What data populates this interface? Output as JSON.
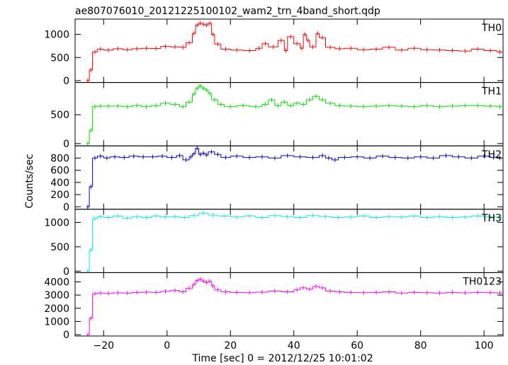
{
  "chart_data": {
    "type": "line",
    "title": "ae807076010_20121225100102_wam2_trn_4band_short.qdp",
    "xlabel": "Time [sec] 0 = 2012/12/25 10:01:02",
    "ylabel": "Counts/sec",
    "xlim": [
      -29,
      106
    ],
    "xticks": [
      -20,
      0,
      20,
      40,
      60,
      80,
      100
    ],
    "panels": [
      {
        "label": "TH0",
        "color": "#ff0000",
        "ylim": [
          -40,
          1330
        ],
        "yticks": [
          0,
          500,
          1000
        ],
        "points": [
          [
            -25.5,
            0
          ],
          [
            -24.5,
            230
          ],
          [
            -23.5,
            620
          ],
          [
            -22,
            680
          ],
          [
            -20,
            660
          ],
          [
            -17,
            690
          ],
          [
            -14,
            670
          ],
          [
            -11,
            690
          ],
          [
            -8,
            700
          ],
          [
            -5,
            695
          ],
          [
            -2,
            740
          ],
          [
            1,
            730
          ],
          [
            4,
            720
          ],
          [
            6,
            820
          ],
          [
            8,
            1020
          ],
          [
            9,
            1200
          ],
          [
            10,
            1240
          ],
          [
            11,
            1220
          ],
          [
            12,
            1200
          ],
          [
            13,
            1240
          ],
          [
            14,
            1000
          ],
          [
            15,
            790
          ],
          [
            17,
            680
          ],
          [
            20,
            660
          ],
          [
            24,
            650
          ],
          [
            28,
            700
          ],
          [
            30,
            800
          ],
          [
            32,
            730
          ],
          [
            35,
            870
          ],
          [
            37,
            650
          ],
          [
            38,
            950
          ],
          [
            40,
            800
          ],
          [
            42,
            700
          ],
          [
            43,
            1000
          ],
          [
            44,
            870
          ],
          [
            45,
            730
          ],
          [
            47,
            1020
          ],
          [
            48,
            930
          ],
          [
            50,
            720
          ],
          [
            53,
            690
          ],
          [
            56,
            700
          ],
          [
            60,
            670
          ],
          [
            64,
            680
          ],
          [
            68,
            720
          ],
          [
            72,
            660
          ],
          [
            76,
            700
          ],
          [
            80,
            670
          ],
          [
            84,
            660
          ],
          [
            88,
            650
          ],
          [
            92,
            640
          ],
          [
            96,
            680
          ],
          [
            100,
            650
          ],
          [
            104,
            620
          ]
        ]
      },
      {
        "label": "TH1",
        "color": "#00dd00",
        "ylim": [
          -40,
          1060
        ],
        "yticks": [
          0,
          500
        ],
        "points": [
          [
            -25.5,
            0
          ],
          [
            -24.5,
            230
          ],
          [
            -23.5,
            640
          ],
          [
            -22,
            650
          ],
          [
            -20,
            650
          ],
          [
            -17,
            650
          ],
          [
            -14,
            640
          ],
          [
            -11,
            660
          ],
          [
            -8,
            640
          ],
          [
            -5,
            660
          ],
          [
            -2,
            700
          ],
          [
            1,
            680
          ],
          [
            4,
            640
          ],
          [
            6,
            720
          ],
          [
            8,
            860
          ],
          [
            9,
            960
          ],
          [
            10,
            1000
          ],
          [
            11,
            960
          ],
          [
            12,
            930
          ],
          [
            13,
            870
          ],
          [
            14,
            760
          ],
          [
            16,
            680
          ],
          [
            18,
            640
          ],
          [
            22,
            660
          ],
          [
            26,
            640
          ],
          [
            30,
            680
          ],
          [
            32,
            760
          ],
          [
            34,
            660
          ],
          [
            36,
            720
          ],
          [
            38,
            660
          ],
          [
            40,
            700
          ],
          [
            42,
            680
          ],
          [
            44,
            760
          ],
          [
            46,
            820
          ],
          [
            48,
            760
          ],
          [
            50,
            700
          ],
          [
            53,
            660
          ],
          [
            56,
            650
          ],
          [
            60,
            640
          ],
          [
            64,
            650
          ],
          [
            68,
            660
          ],
          [
            72,
            650
          ],
          [
            76,
            640
          ],
          [
            80,
            660
          ],
          [
            84,
            640
          ],
          [
            88,
            650
          ],
          [
            92,
            660
          ],
          [
            96,
            660
          ],
          [
            100,
            650
          ],
          [
            104,
            640
          ]
        ]
      },
      {
        "label": "TH2",
        "color": "#0000cc",
        "ylim": [
          -40,
          1000
        ],
        "yticks": [
          0,
          200,
          400,
          600,
          800
        ],
        "points": [
          [
            -25.5,
            0
          ],
          [
            -24.5,
            330
          ],
          [
            -23.5,
            800
          ],
          [
            -22,
            830
          ],
          [
            -20,
            800
          ],
          [
            -18,
            820
          ],
          [
            -15,
            810
          ],
          [
            -12,
            830
          ],
          [
            -9,
            820
          ],
          [
            -6,
            820
          ],
          [
            -3,
            830
          ],
          [
            0,
            810
          ],
          [
            3,
            840
          ],
          [
            5,
            770
          ],
          [
            7,
            820
          ],
          [
            8,
            870
          ],
          [
            9,
            960
          ],
          [
            10,
            860
          ],
          [
            11,
            880
          ],
          [
            12,
            850
          ],
          [
            13,
            900
          ],
          [
            15,
            860
          ],
          [
            17,
            810
          ],
          [
            20,
            830
          ],
          [
            24,
            810
          ],
          [
            28,
            820
          ],
          [
            32,
            800
          ],
          [
            36,
            840
          ],
          [
            40,
            820
          ],
          [
            44,
            810
          ],
          [
            48,
            840
          ],
          [
            50,
            800
          ],
          [
            52,
            770
          ],
          [
            54,
            810
          ],
          [
            58,
            820
          ],
          [
            62,
            800
          ],
          [
            66,
            830
          ],
          [
            70,
            810
          ],
          [
            74,
            800
          ],
          [
            78,
            820
          ],
          [
            82,
            800
          ],
          [
            86,
            840
          ],
          [
            90,
            820
          ],
          [
            94,
            800
          ],
          [
            98,
            830
          ],
          [
            102,
            810
          ],
          [
            104,
            800
          ]
        ]
      },
      {
        "label": "TH3",
        "color": "#00eeee",
        "ylim": [
          -30,
          1270
        ],
        "yticks": [
          0,
          500,
          1000
        ],
        "points": [
          [
            -25.5,
            0
          ],
          [
            -24.5,
            440
          ],
          [
            -23.5,
            1080
          ],
          [
            -22,
            1120
          ],
          [
            -20,
            1100
          ],
          [
            -17,
            1130
          ],
          [
            -14,
            1090
          ],
          [
            -11,
            1120
          ],
          [
            -8,
            1100
          ],
          [
            -5,
            1130
          ],
          [
            -2,
            1110
          ],
          [
            1,
            1120
          ],
          [
            4,
            1100
          ],
          [
            7,
            1140
          ],
          [
            10,
            1190
          ],
          [
            13,
            1150
          ],
          [
            16,
            1130
          ],
          [
            20,
            1110
          ],
          [
            24,
            1130
          ],
          [
            28,
            1100
          ],
          [
            32,
            1140
          ],
          [
            36,
            1120
          ],
          [
            40,
            1100
          ],
          [
            44,
            1140
          ],
          [
            48,
            1120
          ],
          [
            52,
            1100
          ],
          [
            56,
            1110
          ],
          [
            60,
            1130
          ],
          [
            64,
            1100
          ],
          [
            68,
            1120
          ],
          [
            72,
            1110
          ],
          [
            76,
            1130
          ],
          [
            80,
            1100
          ],
          [
            84,
            1120
          ],
          [
            88,
            1100
          ],
          [
            92,
            1110
          ],
          [
            96,
            1130
          ],
          [
            100,
            1110
          ],
          [
            104,
            1100
          ]
        ]
      },
      {
        "label": "TH0123",
        "color": "#ff00ff",
        "ylim": [
          -100,
          4700
        ],
        "yticks": [
          0,
          1000,
          2000,
          3000,
          4000
        ],
        "points": [
          [
            -25.5,
            0
          ],
          [
            -24.5,
            1250
          ],
          [
            -23.5,
            3100
          ],
          [
            -22,
            3150
          ],
          [
            -20,
            3130
          ],
          [
            -17,
            3170
          ],
          [
            -14,
            3150
          ],
          [
            -11,
            3200
          ],
          [
            -8,
            3220
          ],
          [
            -5,
            3200
          ],
          [
            -2,
            3280
          ],
          [
            1,
            3350
          ],
          [
            4,
            3250
          ],
          [
            6,
            3500
          ],
          [
            8,
            3800
          ],
          [
            9,
            4100
          ],
          [
            10,
            4200
          ],
          [
            11,
            4050
          ],
          [
            12,
            3950
          ],
          [
            13,
            4050
          ],
          [
            14,
            3700
          ],
          [
            15,
            3400
          ],
          [
            17,
            3250
          ],
          [
            20,
            3200
          ],
          [
            24,
            3180
          ],
          [
            28,
            3220
          ],
          [
            32,
            3300
          ],
          [
            36,
            3250
          ],
          [
            40,
            3400
          ],
          [
            42,
            3550
          ],
          [
            44,
            3450
          ],
          [
            46,
            3650
          ],
          [
            48,
            3550
          ],
          [
            50,
            3300
          ],
          [
            53,
            3250
          ],
          [
            56,
            3200
          ],
          [
            60,
            3180
          ],
          [
            64,
            3200
          ],
          [
            68,
            3250
          ],
          [
            72,
            3150
          ],
          [
            76,
            3200
          ],
          [
            80,
            3180
          ],
          [
            84,
            3150
          ],
          [
            88,
            3200
          ],
          [
            92,
            3170
          ],
          [
            96,
            3200
          ],
          [
            100,
            3180
          ],
          [
            104,
            3150
          ]
        ]
      }
    ]
  }
}
